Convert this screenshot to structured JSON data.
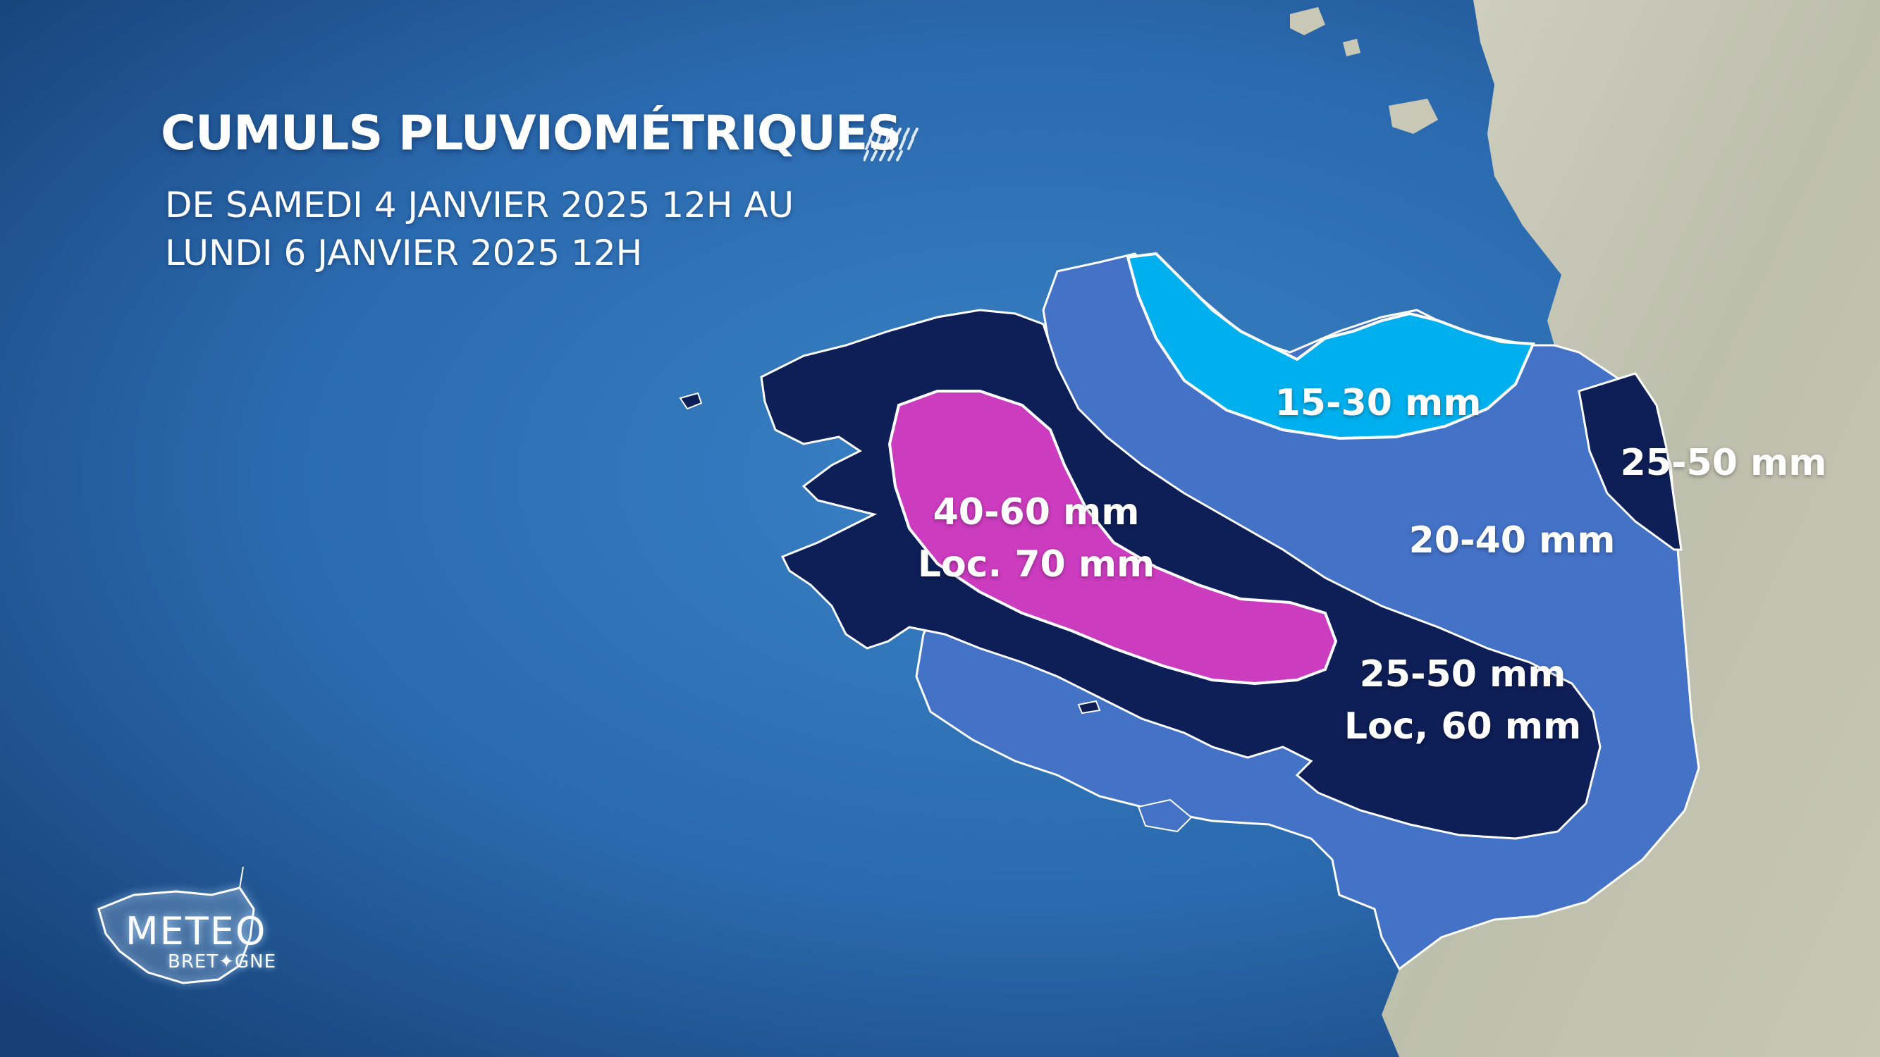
{
  "header": {
    "title": "CUMULS PLUVIOMÉTRIQUES",
    "period_line1": "DE SAMEDI 4 JANVIER 2025 12H AU",
    "period_line2": "LUNDI 6 JANVIER 2025 12H"
  },
  "zones": [
    {
      "id": "north-coast",
      "line1": "15-30 mm",
      "line2": "",
      "color": "#00b0ee"
    },
    {
      "id": "center-east",
      "line1": "20-40 mm",
      "line2": "",
      "color": "#4372c7"
    },
    {
      "id": "east-strip",
      "line1": "25-50 mm",
      "line2": "",
      "color": "#0e1e57"
    },
    {
      "id": "south-band",
      "line1": "25-50 mm",
      "line2": "Loc, 60 mm",
      "color": "#0e1e57"
    },
    {
      "id": "west-core",
      "line1": "40-60 mm",
      "line2": "Loc. 70 mm",
      "color": "#cc3cbf"
    }
  ],
  "colors": {
    "ocean": "#2a6bb3",
    "land": "#c9c9b8",
    "outline": "#ffffff"
  },
  "icons": {
    "rain": "rain-icon",
    "logo": "meteo-bretagne-logo"
  },
  "logo": {
    "main": "METEO",
    "sub": "BRET✦GNE"
  }
}
